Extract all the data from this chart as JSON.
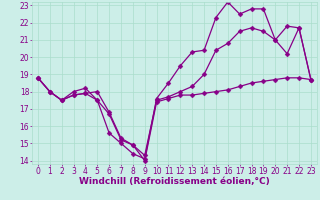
{
  "x_values": [
    0,
    1,
    2,
    3,
    4,
    5,
    6,
    7,
    8,
    9,
    10,
    11,
    12,
    13,
    14,
    15,
    16,
    17,
    18,
    19,
    20,
    21,
    22,
    23
  ],
  "line1": [
    18.8,
    18.0,
    17.5,
    17.8,
    17.9,
    18.0,
    16.8,
    15.3,
    14.9,
    14.0,
    17.4,
    17.6,
    17.8,
    17.8,
    17.9,
    18.0,
    18.1,
    18.3,
    18.5,
    18.6,
    18.7,
    18.8,
    18.8,
    18.7
  ],
  "line2": [
    18.8,
    18.0,
    17.5,
    17.8,
    17.9,
    17.5,
    16.7,
    15.2,
    14.9,
    14.3,
    17.5,
    17.7,
    18.0,
    18.3,
    19.0,
    20.4,
    20.8,
    21.5,
    21.7,
    21.5,
    21.0,
    21.8,
    21.7,
    18.7
  ],
  "line3": [
    18.8,
    18.0,
    17.5,
    18.0,
    18.2,
    17.5,
    15.6,
    15.0,
    14.4,
    14.1,
    17.6,
    18.5,
    19.5,
    20.3,
    20.4,
    22.3,
    23.2,
    22.5,
    22.8,
    22.8,
    21.0,
    20.2,
    21.7,
    18.7
  ],
  "bg_color": "#cceee8",
  "grid_color": "#aaddcc",
  "line_color": "#880088",
  "marker": "D",
  "marker_size": 2.5,
  "linewidth": 0.9,
  "xlim": [
    -0.5,
    23.5
  ],
  "ylim": [
    13.8,
    23.2
  ],
  "yticks": [
    14,
    15,
    16,
    17,
    18,
    19,
    20,
    21,
    22,
    23
  ],
  "xticks": [
    0,
    1,
    2,
    3,
    4,
    5,
    6,
    7,
    8,
    9,
    10,
    11,
    12,
    13,
    14,
    15,
    16,
    17,
    18,
    19,
    20,
    21,
    22,
    23
  ],
  "xlabel": "Windchill (Refroidissement éolien,°C)",
  "xlabel_color": "#880088",
  "xlabel_fontsize": 6.5,
  "tick_fontsize": 5.5,
  "tick_color": "#880088",
  "fig_width": 3.2,
  "fig_height": 2.0,
  "dpi": 100
}
